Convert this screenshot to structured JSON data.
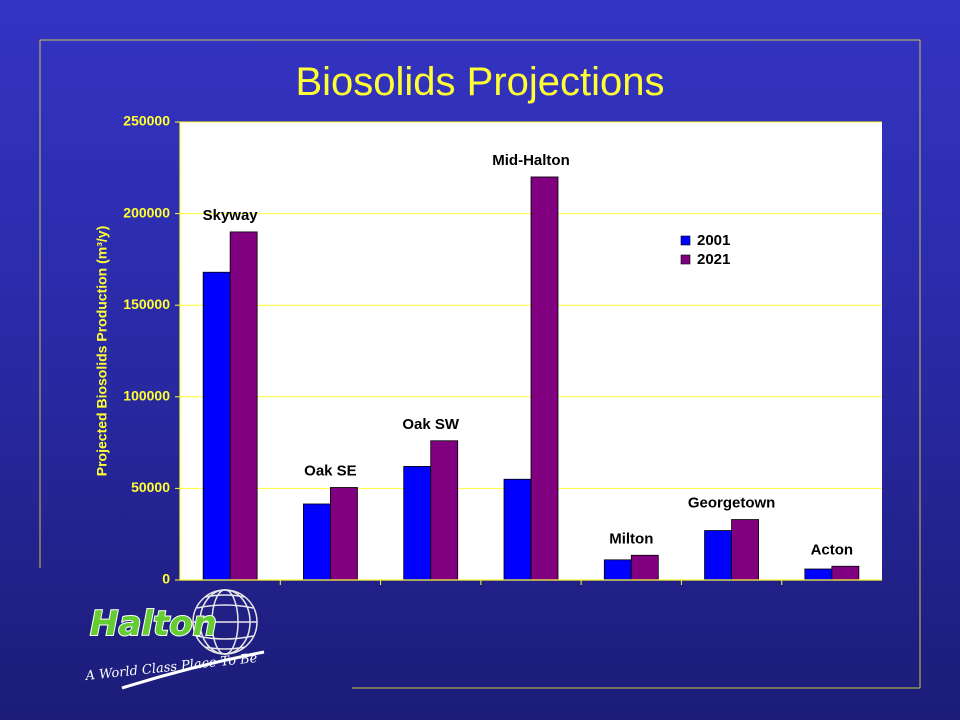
{
  "slide": {
    "title": "Biosolids Projections",
    "colors": {
      "background_top": "#3434c4",
      "background_bottom": "#1c1c78",
      "title": "#ffff33",
      "frame": "#c8c84a",
      "plot_background": "#ffffff",
      "gridline": "#ffff33",
      "series_2001": "#0000ff",
      "series_2021": "#800080"
    }
  },
  "chart_data": {
    "type": "bar",
    "title": "",
    "ylabel": "Projected Biosolids Production (m³/y)",
    "xlabel": "",
    "ylim": [
      0,
      250000
    ],
    "yticks": [
      0,
      50000,
      100000,
      150000,
      200000,
      250000
    ],
    "grid": true,
    "legend_position": "upper-right",
    "categories": [
      "Skyway",
      "Oak SE",
      "Oak SW",
      "Mid-Halton",
      "Milton",
      "Georgetown",
      "Acton"
    ],
    "series": [
      {
        "name": "2001",
        "color": "#0000ff",
        "values": [
          168000,
          41500,
          62000,
          55000,
          11000,
          27000,
          6000
        ]
      },
      {
        "name": "2021",
        "color": "#800080",
        "values": [
          190000,
          50500,
          76000,
          220000,
          13500,
          33000,
          7500
        ]
      }
    ]
  },
  "logo": {
    "wordmark": "Halton",
    "tagline": "A World Class Place To Be"
  }
}
